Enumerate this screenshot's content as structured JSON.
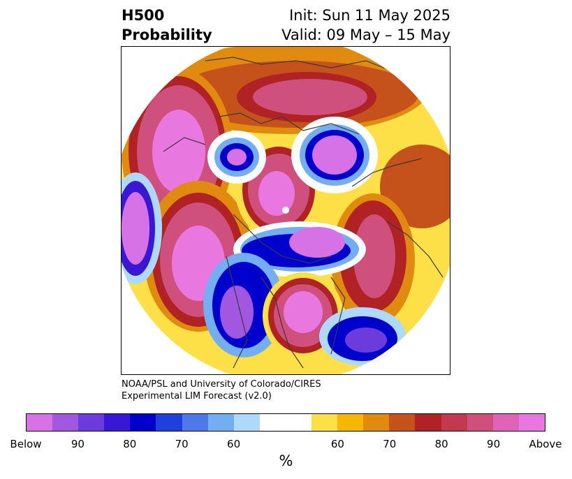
{
  "title": {
    "line1_left": "H500",
    "line2_left": "Probability",
    "line1_right": "Init: Sun 11 May 2025",
    "line2_right": "Valid: 09 May – 15 May"
  },
  "credit": {
    "line1": "NOAA/PSL and University of Colorado/CIRES",
    "line2": "Experimental LIM Forecast (v2.0)"
  },
  "colorbar": {
    "colors": [
      "#d672e6",
      "#a157e0",
      "#6b3cdb",
      "#3818d4",
      "#0000cd",
      "#2040dd",
      "#4f78e8",
      "#74aef2",
      "#add9fb",
      "#ffffff",
      "#ffffff",
      "#fde047",
      "#f5b700",
      "#e08a10",
      "#c4521a",
      "#b02224",
      "#c23a4f",
      "#cf4f7d",
      "#df63b8",
      "#e878e0"
    ],
    "ticks": [
      "Below",
      "90",
      "80",
      "70",
      "60",
      "60",
      "70",
      "80",
      "90",
      "Above"
    ],
    "units": "%"
  },
  "map_colors": {
    "below_far": "#d672e6",
    "below_strong": "#0000cd",
    "below_light": "#add9fb",
    "above_light": "#fde047",
    "above_mid": "#e08a10",
    "above_strong": "#b02224",
    "above_far": "#e878e0",
    "coastline": "#3a3a3a"
  }
}
